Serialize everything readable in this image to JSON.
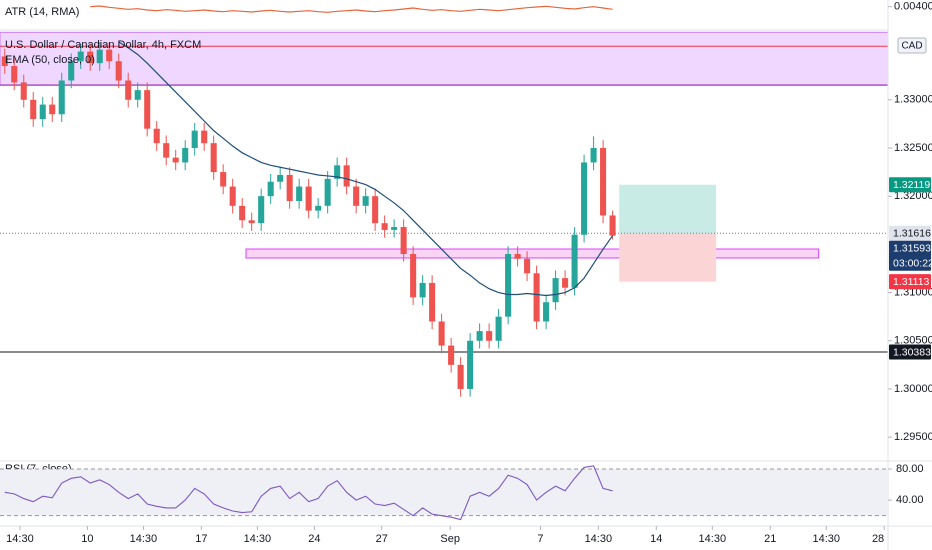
{
  "chart_data": {
    "type": "candlestick",
    "title": "U.S. Dollar / Canadian Dollar, 4h, FXCM",
    "currency": "CAD",
    "up_color": "#26a69a",
    "down_color": "#ef5350",
    "xlim": [
      -0.5,
      93
    ],
    "xticks": [
      {
        "value": 1.6,
        "label": "14:30"
      },
      {
        "value": 8.7,
        "label": "10"
      },
      {
        "value": 14.6,
        "label": "14:30"
      },
      {
        "value": 20.7,
        "label": "17"
      },
      {
        "value": 26.6,
        "label": "14:30"
      },
      {
        "value": 32.6,
        "label": "24"
      },
      {
        "value": 39.7,
        "label": "27"
      },
      {
        "value": 46.9,
        "label": "Sep"
      },
      {
        "value": 56.4,
        "label": "7"
      },
      {
        "value": 62.5,
        "label": "14:30"
      },
      {
        "value": 68.6,
        "label": "14"
      },
      {
        "value": 74.5,
        "label": "14:30"
      },
      {
        "value": 80.6,
        "label": "21"
      },
      {
        "value": 86.5,
        "label": "14:30"
      },
      {
        "value": 92.6,
        "label": "28"
      }
    ],
    "ylim": [
      1.29263,
      1.33724
    ],
    "yticks": [
      {
        "value": 1.295,
        "label": "1.29500"
      },
      {
        "value": 1.3,
        "label": "1.30000"
      },
      {
        "value": 1.305,
        "label": "1.30500"
      },
      {
        "value": 1.31,
        "label": "1.31000"
      },
      {
        "value": 1.32,
        "label": "1.32000"
      },
      {
        "value": 1.325,
        "label": "1.32500"
      },
      {
        "value": 1.33,
        "label": "1.33000"
      }
    ],
    "candles": {
      "open": [
        1.3345,
        1.3335,
        1.3318,
        1.33,
        1.328,
        1.3295,
        1.3285,
        1.332,
        1.334,
        1.335,
        1.3338,
        1.3352,
        1.334,
        1.332,
        1.33,
        1.331,
        1.327,
        1.3255,
        1.324,
        1.3235,
        1.325,
        1.3268,
        1.3255,
        1.3225,
        1.321,
        1.319,
        1.3175,
        1.3172,
        1.32,
        1.3215,
        1.3222,
        1.3195,
        1.321,
        1.3185,
        1.319,
        1.3218,
        1.3232,
        1.321,
        1.319,
        1.32,
        1.3172,
        1.3165,
        1.3168,
        1.314,
        1.3095,
        1.311,
        1.307,
        1.3045,
        1.3025,
        1.3,
        1.305,
        1.306,
        1.305,
        1.3075,
        1.314,
        1.3135,
        1.312,
        1.307,
        1.309,
        1.3115,
        1.3105,
        1.316,
        1.3235,
        1.325,
        1.318
      ],
      "high": [
        1.3353,
        1.3343,
        1.3326,
        1.3308,
        1.3303,
        1.3303,
        1.3328,
        1.3348,
        1.3358,
        1.3358,
        1.336,
        1.336,
        1.3348,
        1.3328,
        1.3318,
        1.3318,
        1.3278,
        1.3263,
        1.3248,
        1.3258,
        1.3276,
        1.3276,
        1.3263,
        1.3233,
        1.3218,
        1.3198,
        1.3183,
        1.3208,
        1.3223,
        1.323,
        1.323,
        1.3218,
        1.3218,
        1.3198,
        1.3226,
        1.324,
        1.324,
        1.3218,
        1.3208,
        1.3208,
        1.318,
        1.3176,
        1.3176,
        1.3148,
        1.3118,
        1.3118,
        1.3078,
        1.3053,
        1.3033,
        1.3058,
        1.3068,
        1.3068,
        1.3083,
        1.3148,
        1.3148,
        1.3143,
        1.3128,
        1.3098,
        1.3123,
        1.3123,
        1.3168,
        1.3243,
        1.3262,
        1.3258,
        1.3185
      ],
      "low": [
        1.3327,
        1.331,
        1.3292,
        1.3272,
        1.3272,
        1.3277,
        1.3277,
        1.3312,
        1.3332,
        1.333,
        1.333,
        1.3332,
        1.3312,
        1.3292,
        1.3292,
        1.3262,
        1.3247,
        1.3232,
        1.3227,
        1.3227,
        1.3242,
        1.3247,
        1.3217,
        1.3202,
        1.3182,
        1.3167,
        1.3164,
        1.3164,
        1.3192,
        1.3207,
        1.3187,
        1.3187,
        1.3177,
        1.3177,
        1.3182,
        1.321,
        1.3202,
        1.3182,
        1.3182,
        1.3164,
        1.3157,
        1.3157,
        1.3132,
        1.3087,
        1.3087,
        1.3062,
        1.3037,
        1.3017,
        1.2992,
        1.2992,
        1.3042,
        1.3042,
        1.3042,
        1.3067,
        1.3127,
        1.3112,
        1.3062,
        1.3062,
        1.3082,
        1.3097,
        1.3097,
        1.3152,
        1.3227,
        1.3172,
        1.3155
      ],
      "close": [
        1.3335,
        1.3318,
        1.33,
        1.328,
        1.3295,
        1.3285,
        1.332,
        1.334,
        1.335,
        1.3338,
        1.3352,
        1.334,
        1.332,
        1.33,
        1.331,
        1.327,
        1.3255,
        1.324,
        1.3235,
        1.325,
        1.3268,
        1.3255,
        1.3225,
        1.321,
        1.319,
        1.3175,
        1.3172,
        1.32,
        1.3215,
        1.3222,
        1.3195,
        1.321,
        1.3185,
        1.319,
        1.3218,
        1.3232,
        1.321,
        1.319,
        1.32,
        1.3172,
        1.3165,
        1.3168,
        1.314,
        1.3095,
        1.311,
        1.307,
        1.3045,
        1.3025,
        1.3,
        1.305,
        1.306,
        1.305,
        1.3075,
        1.314,
        1.3135,
        1.312,
        1.307,
        1.309,
        1.3115,
        1.3105,
        1.316,
        1.3235,
        1.325,
        1.318,
        1.3159
      ]
    },
    "series": [
      {
        "name": "EMA (50, close, 0)",
        "color": "#1f4e79",
        "values": [
          null,
          null,
          null,
          null,
          null,
          null,
          null,
          null,
          null,
          null,
          null,
          null,
          1.336,
          1.3354,
          1.3347,
          1.3338,
          1.3328,
          1.3318,
          1.3308,
          1.3298,
          1.3288,
          1.3278,
          1.3268,
          1.326,
          1.3252,
          1.3245,
          1.324,
          1.3235,
          1.3232,
          1.323,
          1.3228,
          1.3226,
          1.3224,
          1.3222,
          1.3221,
          1.322,
          1.3218,
          1.3215,
          1.3212,
          1.3207,
          1.32,
          1.3193,
          1.3185,
          1.3175,
          1.3165,
          1.3155,
          1.3145,
          1.3135,
          1.3125,
          1.3118,
          1.311,
          1.3104,
          1.31,
          1.3098,
          1.3098,
          1.3099,
          1.3098,
          1.3097,
          1.3098,
          1.31,
          1.3105,
          1.3115,
          1.313,
          1.3145,
          1.3159
        ]
      }
    ],
    "levels": [
      {
        "value": 1.33556,
        "color": "#f23645"
      },
      {
        "value": 1.33154,
        "color": "#9c27b0"
      },
      {
        "value": 1.30383,
        "color": "#131722"
      }
    ],
    "zones": [
      {
        "range": [
          1.3315,
          1.337
        ],
        "x": [
          -0.5,
          93
        ],
        "color": "#e9c9ff",
        "stroke": "#c77dff"
      },
      {
        "range": [
          1.31359,
          1.31452
        ],
        "x": [
          25.4,
          85.7
        ],
        "color": "#f8c6f2",
        "stroke": "#e040fb"
      }
    ],
    "position": {
      "entry": 1.31616,
      "target": 1.32119,
      "stop": 1.31113,
      "x": [
        64.7,
        74.9
      ],
      "profit_color": "#c8ebe6",
      "loss_color": "#fbd5d5",
      "line_color": "#787b86"
    },
    "price_labels": [
      {
        "value": 1.32119,
        "color": "#089981",
        "text_color": "#ffffff"
      },
      {
        "value": 1.31616,
        "color": "#e0e3eb",
        "text_color": "#131722"
      },
      {
        "value": 1.31593,
        "color": "#1c3d6e",
        "text_color": "#ffffff",
        "countdown": "03:00:22"
      },
      {
        "value": 1.31113,
        "color": "#f23645",
        "text_color": "#ffffff"
      },
      {
        "value": 1.30383,
        "color": "#131722",
        "text_color": "#ffffff"
      }
    ],
    "atr": {
      "title": "ATR (14, RMA)",
      "color": "#e8643c",
      "ylim": [
        0.0033,
        0.0042
      ],
      "yticks": [
        {
          "value": 0.004,
          "label": "0.00400"
        }
      ],
      "values": [
        null,
        null,
        null,
        null,
        null,
        null,
        null,
        null,
        null,
        0.004,
        0.00402,
        0.00398,
        0.00395,
        0.00392,
        0.00394,
        0.0039,
        0.00388,
        0.00391,
        0.00389,
        0.00386,
        0.00388,
        0.0039,
        0.00387,
        0.00385,
        0.00388,
        0.00386,
        0.00384,
        0.00387,
        0.00389,
        0.00386,
        0.00384,
        0.00386,
        0.00388,
        0.00385,
        0.00383,
        0.00386,
        0.00388,
        0.0039,
        0.00387,
        0.00385,
        0.00388,
        0.0039,
        0.00393,
        0.00396,
        0.00392,
        0.00389,
        0.00391,
        0.00388,
        0.00386,
        0.00389,
        0.00392,
        0.0039,
        0.00388,
        0.00391,
        0.00394,
        0.00397,
        0.00399,
        0.00401,
        0.00398,
        0.00395,
        0.00393,
        0.00397,
        0.004,
        0.00396,
        0.00392
      ]
    },
    "rsi": {
      "title": "RSI (7, close)",
      "color": "#7e57c2",
      "band": [
        20,
        80
      ],
      "band_color": "#eef0f6",
      "ylim": [
        8,
        89
      ],
      "yticks": [
        {
          "value": 80,
          "label": "80.00"
        },
        {
          "value": 40,
          "label": "40.00"
        }
      ],
      "values": [
        50,
        48,
        42,
        38,
        45,
        43,
        62,
        68,
        70,
        62,
        66,
        60,
        50,
        42,
        48,
        35,
        32,
        30,
        30,
        40,
        55,
        48,
        35,
        30,
        26,
        24,
        25,
        45,
        55,
        58,
        42,
        50,
        38,
        42,
        58,
        65,
        50,
        40,
        45,
        35,
        33,
        36,
        28,
        20,
        30,
        22,
        20,
        18,
        15,
        45,
        50,
        45,
        55,
        72,
        68,
        60,
        40,
        50,
        58,
        52,
        68,
        82,
        84,
        55,
        52
      ]
    }
  }
}
